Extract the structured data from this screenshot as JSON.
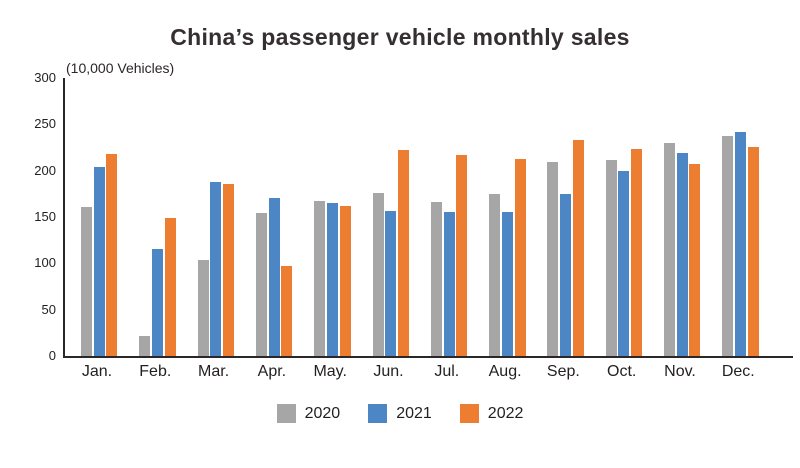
{
  "chart_data": {
    "type": "bar",
    "title": "China’s passenger vehicle monthly sales",
    "unit_label": "(10,000 Vehicles)",
    "categories": [
      "Jan.",
      "Feb.",
      "Mar.",
      "Apr.",
      "May.",
      "Jun.",
      "Jul.",
      "Aug.",
      "Sep.",
      "Oct.",
      "Nov.",
      "Dec."
    ],
    "series": [
      {
        "name": "2020",
        "color": "#a6a6a6",
        "values": [
          161,
          22,
          104,
          154,
          167,
          176,
          166,
          175,
          209,
          211,
          230,
          237
        ]
      },
      {
        "name": "2021",
        "color": "#4d86c4",
        "values": [
          204,
          116,
          188,
          170,
          165,
          157,
          155,
          155,
          175,
          200,
          219,
          242
        ]
      },
      {
        "name": "2022",
        "color": "#ed7d31",
        "values": [
          218,
          149,
          186,
          97,
          162,
          222,
          217,
          213,
          233,
          223,
          207,
          226
        ]
      }
    ],
    "ylim": [
      0,
      300
    ],
    "yticks": [
      0,
      50,
      100,
      150,
      200,
      250,
      300
    ],
    "grid": false,
    "legend_position": "bottom",
    "axis_color": "#2b2627",
    "text_color": "#231f20"
  }
}
